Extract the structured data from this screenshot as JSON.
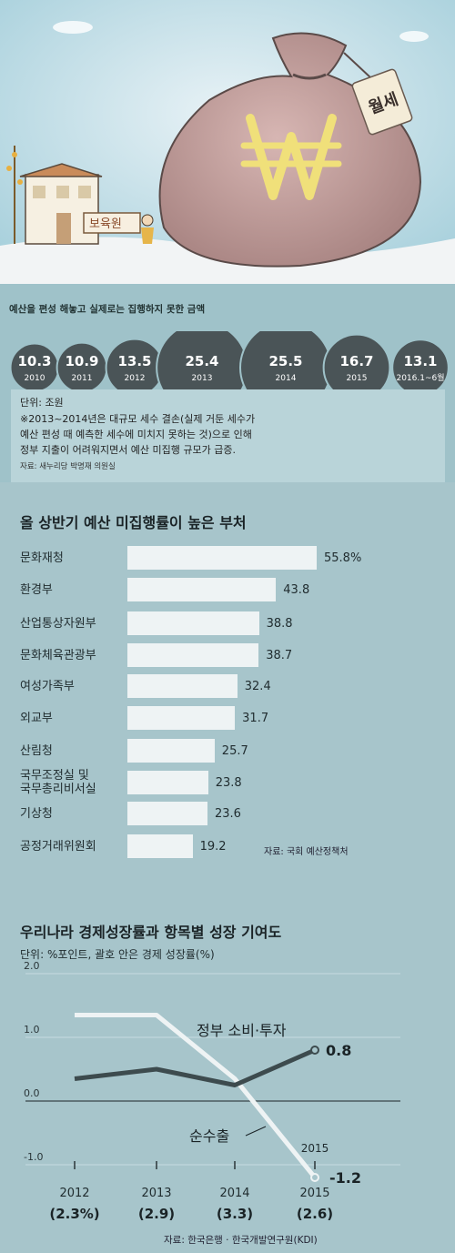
{
  "tag_label": "월세",
  "daycare_sign": "보육원",
  "section1": {
    "title": "예산을 편성 해놓고 실제로는 집행하지 못한 금액",
    "bubbles": [
      {
        "value": "10.3",
        "year": "2010",
        "amount": 10.3
      },
      {
        "value": "10.9",
        "year": "2011",
        "amount": 10.9
      },
      {
        "value": "13.5",
        "year": "2012",
        "amount": 13.5
      },
      {
        "value": "25.4",
        "year": "2013",
        "amount": 25.4
      },
      {
        "value": "25.5",
        "year": "2014",
        "amount": 25.5
      },
      {
        "value": "16.7",
        "year": "2015",
        "amount": 16.7
      },
      {
        "value": "13.1",
        "year": "2016.1~6월",
        "amount": 13.1
      }
    ],
    "unit": "단위: 조원",
    "note_line1": "※2013~2014년은 대규모 세수 결손(실제 거둔 세수가",
    "note_line2": "예산 편성 때 예측한 세수에 미치지 못하는 것)으로 인해",
    "note_line3": "정부 지출이 어려워지면서 예산 미집행 규모가 급증.",
    "source": "자료: 새누리당 박명재 의원실"
  },
  "section2": {
    "title": "올 상반기 예산 미집행률이 높은 부처",
    "source": "자료: 국회 예산정책처",
    "rows": [
      {
        "name": "문화재청",
        "name2": "",
        "label": "55.8%",
        "value": 55.8
      },
      {
        "name": "환경부",
        "name2": "",
        "label": "43.8",
        "value": 43.8
      },
      {
        "name": "산업통상자원부",
        "name2": "",
        "label": "38.8",
        "value": 38.8
      },
      {
        "name": "문화체육관광부",
        "name2": "",
        "label": "38.7",
        "value": 38.7
      },
      {
        "name": "여성가족부",
        "name2": "",
        "label": "32.4",
        "value": 32.4
      },
      {
        "name": "외교부",
        "name2": "",
        "label": "31.7",
        "value": 31.7
      },
      {
        "name": "산림청",
        "name2": "",
        "label": "25.7",
        "value": 25.7
      },
      {
        "name": "국무조정실 및",
        "name2": "국무총리비서실",
        "label": "23.8",
        "value": 23.8
      },
      {
        "name": "기상청",
        "name2": "",
        "label": "23.6",
        "value": 23.6
      },
      {
        "name": "공정거래위원회",
        "name2": "",
        "label": "19.2",
        "value": 19.2
      }
    ]
  },
  "section3": {
    "title": "우리나라 경제성장률과 항목별 성장 기여도",
    "subtitle": "단위: %포인트, 괄호 안은 경제 성장률(%)",
    "source": "자료: 한국은행 · 한국개발연구원(KDI)",
    "yticks": [
      {
        "v": 2.0,
        "label": "2.0"
      },
      {
        "v": 1.0,
        "label": "1.0"
      },
      {
        "v": 0.0,
        "label": "0.0"
      },
      {
        "v": -1.0,
        "label": "-1.0"
      }
    ],
    "xlabels": [
      {
        "year": "2012",
        "growth": "(2.3%)"
      },
      {
        "year": "2013",
        "growth": "(2.9)"
      },
      {
        "year": "2014",
        "growth": "(3.3)"
      },
      {
        "year": "2015",
        "growth": "(2.6)"
      }
    ],
    "series": [
      {
        "name": "정부 소비·투자",
        "end_label": "0.8",
        "color": "#3d4b4e",
        "values": [
          0.35,
          0.5,
          0.25,
          0.8
        ]
      },
      {
        "name": "순수출",
        "end_label": "-1.2",
        "color": "#eef3f4",
        "values": [
          1.35,
          1.35,
          0.35,
          -1.2
        ]
      }
    ]
  },
  "chart_data": [
    {
      "type": "bar",
      "title": "예산을 편성 해놓고 실제로는 집행하지 못한 금액",
      "categories": [
        "2010",
        "2011",
        "2012",
        "2013",
        "2014",
        "2015",
        "2016.1~6월"
      ],
      "values": [
        10.3,
        10.9,
        13.5,
        25.4,
        25.5,
        16.7,
        13.1
      ],
      "ylabel": "단위: 조원"
    },
    {
      "type": "bar",
      "title": "올 상반기 예산 미집행률이 높은 부처",
      "categories": [
        "문화재청",
        "환경부",
        "산업통상자원부",
        "문화체육관광부",
        "여성가족부",
        "외교부",
        "산림청",
        "국무조정실 및 국무총리비서실",
        "기상청",
        "공정거래위원회"
      ],
      "values": [
        55.8,
        43.8,
        38.8,
        38.7,
        32.4,
        31.7,
        25.7,
        23.8,
        23.6,
        19.2
      ]
    },
    {
      "type": "line",
      "title": "우리나라 경제성장률과 항목별 성장 기여도",
      "x": [
        "2012",
        "2013",
        "2014",
        "2015"
      ],
      "series": [
        {
          "name": "정부 소비·투자",
          "values": [
            0.35,
            0.5,
            0.25,
            0.8
          ]
        },
        {
          "name": "순수출",
          "values": [
            1.35,
            1.35,
            0.35,
            -1.2
          ]
        }
      ],
      "ylim": [
        -1.0,
        2.0
      ]
    }
  ]
}
